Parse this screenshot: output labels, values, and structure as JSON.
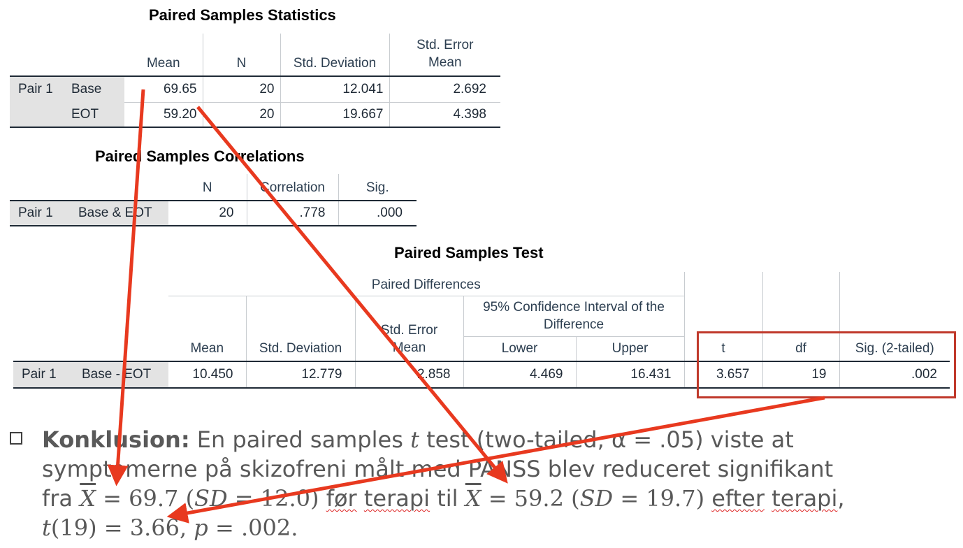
{
  "stats": {
    "title": "Paired Samples Statistics",
    "headers": [
      "Mean",
      "N",
      "Std. Deviation",
      "Std. Error Mean"
    ],
    "header_se_line1": "Std. Error",
    "header_se_line2": "Mean",
    "pair_label": "Pair 1",
    "rows": [
      {
        "name": "Base",
        "mean": "69.65",
        "n": "20",
        "sd": "12.041",
        "se": "2.692"
      },
      {
        "name": "EOT",
        "mean": "59.20",
        "n": "20",
        "sd": "19.667",
        "se": "4.398"
      }
    ]
  },
  "corr": {
    "title": "Paired Samples Correlations",
    "headers": [
      "N",
      "Correlation",
      "Sig."
    ],
    "pair_label": "Pair 1",
    "row": {
      "name": "Base & EOT",
      "n": "20",
      "correlation": ".778",
      "sig": ".000"
    }
  },
  "test": {
    "title": "Paired Samples Test",
    "group_header": "Paired Differences",
    "ci_header_line1": "95% Confidence Interval of the",
    "ci_header_line2": "Difference",
    "headers": {
      "mean": "Mean",
      "sd": "Std. Deviation",
      "se_line1": "Std. Error",
      "se_line2": "Mean",
      "lower": "Lower",
      "upper": "Upper",
      "t": "t",
      "df": "df",
      "sig": "Sig. (2-tailed)"
    },
    "pair_label": "Pair 1",
    "row": {
      "name": "Base - EOT",
      "mean": "10.450",
      "sd": "12.779",
      "se": "2.858",
      "lower": "4.469",
      "upper": "16.431",
      "t": "3.657",
      "df": "19",
      "sig": ".002"
    }
  },
  "conclusion": {
    "label": "Konklusion:",
    "line1_a": "En paired samples ",
    "line1_t": "t",
    "line1_b": " test (two-tailed, α = .05) viste at",
    "line2": "symptomerne på skizofreni målt med PANSS blev reduceret signifikant",
    "line3_fra": "fra ",
    "line3_x1": "X",
    "line3_eq1": " = 69.7 (",
    "line3_sd1": "SD",
    "line3_val1": " = 12.0)",
    "line3_for": "før",
    "line3_sp1": " ",
    "line3_terapi1": "terapi",
    "line3_til": " til ",
    "line3_x2": "X",
    "line3_eq2": " = 59.2 (",
    "line3_sd2": "SD",
    "line3_val2": " = 19.7) ",
    "line3_efter": "efter",
    "line3_sp2": " ",
    "line3_terapi2": "terapi",
    "line3_end": ",",
    "line4_t": "t",
    "line4_a": "(19) = 3.66, ",
    "line4_p": "p",
    "line4_b": " = .002."
  },
  "colors": {
    "arrow": "#e8391f",
    "highlight_box": "#c0392b",
    "row_label_bg": "#e3e3e3"
  }
}
